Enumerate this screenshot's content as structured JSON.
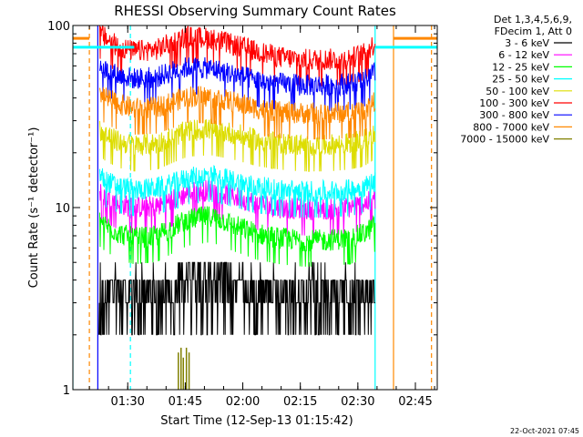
{
  "chart_data": {
    "type": "line",
    "title": "RHESSI Observing Summary Count Rates",
    "xlabel": "Start Time (12-Sep-13 01:15:42)",
    "ylabel": "Count Rate (s⁻¹ detector⁻¹)",
    "yscale": "log",
    "ylim": [
      1,
      100
    ],
    "xlim_minutes": [
      0,
      95
    ],
    "x_ticks": [
      {
        "label": "01:30",
        "minute": 14.3
      },
      {
        "label": "01:45",
        "minute": 29.3
      },
      {
        "label": "02:00",
        "minute": 44.3
      },
      {
        "label": "02:15",
        "minute": 59.3
      },
      {
        "label": "02:30",
        "minute": 74.3
      },
      {
        "label": "02:45",
        "minute": 89.3
      }
    ],
    "y_ticks": [
      {
        "label": "1",
        "value": 1
      },
      {
        "label": "10",
        "value": 10
      },
      {
        "label": "100",
        "value": 100
      }
    ],
    "legend_header": [
      "Det 1,3,4,5,6,9,",
      "FDecim 1, Att 0"
    ],
    "legend_placement": "right",
    "series": [
      {
        "name": "3 - 6 keV",
        "color": "#000000",
        "x": [
          6.8,
          8.5,
          12,
          16,
          22,
          26,
          30,
          36,
          42,
          48,
          54,
          60,
          66,
          72,
          76,
          78.8
        ],
        "y": [
          3.4,
          3.2,
          3.1,
          3.0,
          3.1,
          3.5,
          3.8,
          4.0,
          3.6,
          3.2,
          3.0,
          3.0,
          3.0,
          3.1,
          3.3,
          2.8
        ]
      },
      {
        "name": "6 - 12 keV",
        "color": "#ff00ff",
        "x": [
          7,
          8.5,
          12,
          16,
          22,
          26,
          30,
          36,
          42,
          48,
          54,
          60,
          66,
          72,
          76,
          78.8
        ],
        "y": [
          12,
          11.5,
          10.5,
          10,
          10.2,
          11,
          12,
          12.5,
          11.5,
          10.5,
          10,
          9.8,
          9.8,
          10,
          10.5,
          11
        ]
      },
      {
        "name": "12 - 25 keV",
        "color": "#00ff00",
        "x": [
          7,
          8.5,
          12,
          16,
          22,
          26,
          30,
          36,
          42,
          48,
          54,
          60,
          66,
          72,
          76,
          78.8
        ],
        "y": [
          8.5,
          8,
          7.2,
          6.8,
          7,
          7.8,
          8.6,
          9,
          8,
          7.2,
          6.8,
          6.6,
          6.6,
          6.8,
          7.2,
          8
        ]
      },
      {
        "name": "25 - 50 keV",
        "color": "#00ffff",
        "x": [
          7,
          8.5,
          12,
          16,
          22,
          26,
          30,
          36,
          42,
          48,
          54,
          60,
          66,
          72,
          76,
          78.8
        ],
        "y": [
          15,
          14,
          13,
          12.5,
          12.8,
          13.5,
          14.5,
          15,
          14,
          13,
          12.5,
          12.3,
          12.3,
          12.5,
          13,
          14
        ]
      },
      {
        "name": "50 - 100 keV",
        "color": "#dddd00",
        "x": [
          7,
          8.5,
          12,
          16,
          22,
          26,
          30,
          36,
          42,
          48,
          54,
          60,
          66,
          72,
          76,
          78.8
        ],
        "y": [
          27,
          25,
          23,
          22,
          22.5,
          24.5,
          26.5,
          27,
          25.5,
          23.5,
          22.5,
          22,
          22,
          22.5,
          23.5,
          26
        ]
      },
      {
        "name": "100 - 300 keV",
        "color": "#ff0000",
        "x": [
          7,
          8.5,
          12,
          16,
          22,
          26,
          30,
          36,
          42,
          48,
          54,
          60,
          66,
          72,
          76,
          78.8
        ],
        "y": [
          92,
          85,
          76,
          72,
          74,
          81,
          87,
          85,
          78,
          72,
          67,
          65,
          65,
          66,
          70,
          80
        ]
      },
      {
        "name": "300 - 800 keV",
        "color": "#0000ff",
        "x": [
          7,
          8.5,
          12,
          16,
          22,
          26,
          30,
          36,
          42,
          48,
          54,
          60,
          66,
          72,
          76,
          78.8
        ],
        "y": [
          62,
          57,
          53,
          51,
          52,
          56,
          59,
          58,
          54,
          50,
          48,
          47,
          47,
          48,
          50,
          55
        ]
      },
      {
        "name": "800 - 7000 keV",
        "color": "#ff8800",
        "x": [
          7,
          8.5,
          12,
          16,
          22,
          26,
          30,
          36,
          42,
          48,
          54,
          60,
          66,
          72,
          76,
          78.8
        ],
        "y": [
          43,
          40,
          37,
          35,
          35.5,
          38,
          41,
          40.5,
          38,
          35,
          33.5,
          33,
          33,
          33.5,
          34.5,
          38
        ]
      },
      {
        "name": "7000 - 15000 keV",
        "color": "#808000",
        "x": [
          27.5,
          28.2,
          28.8,
          29.6,
          30.3
        ],
        "y": [
          1.6,
          1.7,
          1.5,
          1.7,
          1.6
        ]
      }
    ],
    "vertical_markers": [
      {
        "minute": 0,
        "color": "#00ffff",
        "style": "solid"
      },
      {
        "minute": 4.3,
        "color": "#ff8800",
        "style": "dashed"
      },
      {
        "minute": 6.5,
        "color": "#0000ff",
        "style": "solid"
      },
      {
        "minute": 15,
        "color": "#00ffff",
        "style": "dashed"
      },
      {
        "minute": 78.8,
        "color": "#00ffff",
        "style": "solid"
      },
      {
        "minute": 83.6,
        "color": "#ff8800",
        "style": "solid"
      },
      {
        "minute": 93.5,
        "color": "#ff8800",
        "style": "dashed"
      }
    ],
    "flags": [
      {
        "name": "orange-left",
        "color": "#ff8800",
        "x1": 0,
        "x2": 4.3,
        "y": 85
      },
      {
        "name": "cyan-left",
        "color": "#00ffff",
        "x1": 0,
        "x2": 16,
        "y": 76
      },
      {
        "name": "orange-right",
        "color": "#ff8800",
        "x1": 83.6,
        "x2": 95,
        "y": 85
      },
      {
        "name": "cyan-right",
        "color": "#00ffff",
        "x1": 78.8,
        "x2": 95,
        "y": 76
      }
    ]
  },
  "footer": {
    "date_stamp": "22-Oct-2021 07:45"
  }
}
